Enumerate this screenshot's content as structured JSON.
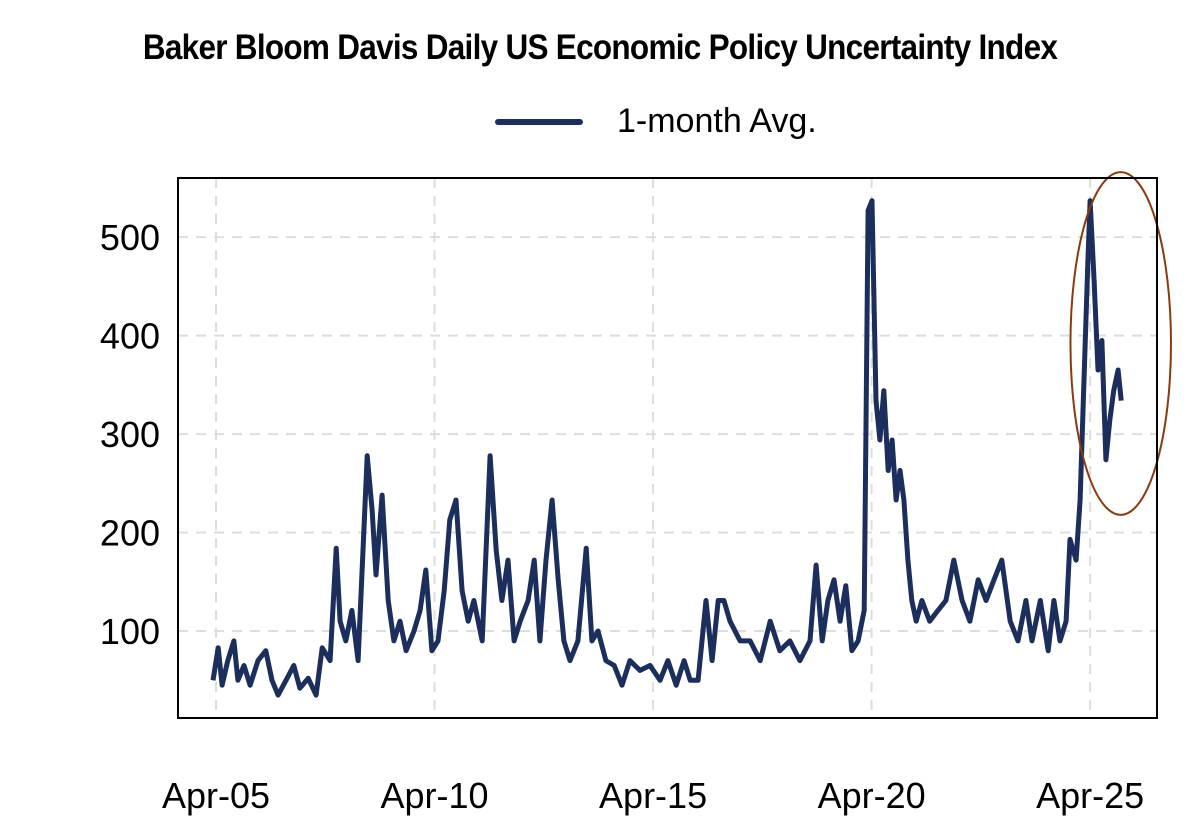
{
  "chart_data": {
    "type": "line",
    "title": "Baker Bloom Davis Daily US Economic Policy Uncertainty Index",
    "xlabel": "",
    "ylabel": "",
    "xlim": [
      2004.38,
      2026.78
    ],
    "ylim": [
      11.7,
      560
    ],
    "grid": true,
    "legend": {
      "placement": "top-center",
      "entries": [
        "1-month Avg."
      ]
    },
    "colors": {
      "line": "#1b2e5c",
      "annotation": "#8b3a0f",
      "grid": "#dddddd"
    },
    "x_ticks": [
      {
        "value": 2005.25,
        "label": "Apr-05"
      },
      {
        "value": 2010.25,
        "label": "Apr-10"
      },
      {
        "value": 2015.25,
        "label": "Apr-15"
      },
      {
        "value": 2020.25,
        "label": "Apr-20"
      },
      {
        "value": 2025.25,
        "label": "Apr-25"
      }
    ],
    "y_ticks": [
      {
        "value": 100,
        "label": "100"
      },
      {
        "value": 200,
        "label": "200"
      },
      {
        "value": 300,
        "label": "300"
      },
      {
        "value": 400,
        "label": "400"
      },
      {
        "value": 500,
        "label": "500"
      }
    ],
    "annotation": {
      "type": "ellipse",
      "x_range": [
        2024.8,
        2027.1
      ],
      "y_range": [
        218,
        566
      ],
      "note": "recent spike highlighted"
    },
    "series": [
      {
        "name": "1-month Avg.",
        "points": [
          [
            2005.18,
            50
          ],
          [
            2005.3,
            83
          ],
          [
            2005.39,
            45
          ],
          [
            2005.52,
            70
          ],
          [
            2005.66,
            90
          ],
          [
            2005.75,
            50
          ],
          [
            2005.89,
            65
          ],
          [
            2006.03,
            45
          ],
          [
            2006.21,
            70
          ],
          [
            2006.39,
            80
          ],
          [
            2006.53,
            50
          ],
          [
            2006.67,
            35
          ],
          [
            2006.85,
            50
          ],
          [
            2007.03,
            65
          ],
          [
            2007.17,
            42
          ],
          [
            2007.36,
            52
          ],
          [
            2007.54,
            35
          ],
          [
            2007.68,
            83
          ],
          [
            2007.86,
            70
          ],
          [
            2008.0,
            184
          ],
          [
            2008.09,
            110
          ],
          [
            2008.22,
            90
          ],
          [
            2008.36,
            121
          ],
          [
            2008.5,
            70
          ],
          [
            2008.71,
            278
          ],
          [
            2008.82,
            223
          ],
          [
            2008.91,
            157
          ],
          [
            2009.05,
            238
          ],
          [
            2009.19,
            131
          ],
          [
            2009.32,
            90
          ],
          [
            2009.46,
            110
          ],
          [
            2009.6,
            80
          ],
          [
            2009.78,
            100
          ],
          [
            2009.92,
            121
          ],
          [
            2010.05,
            162
          ],
          [
            2010.19,
            80
          ],
          [
            2010.33,
            90
          ],
          [
            2010.47,
            141
          ],
          [
            2010.6,
            213
          ],
          [
            2010.74,
            233
          ],
          [
            2010.88,
            141
          ],
          [
            2011.02,
            110
          ],
          [
            2011.15,
            131
          ],
          [
            2011.34,
            90
          ],
          [
            2011.52,
            278
          ],
          [
            2011.66,
            182
          ],
          [
            2011.79,
            131
          ],
          [
            2011.93,
            172
          ],
          [
            2012.07,
            90
          ],
          [
            2012.21,
            110
          ],
          [
            2012.39,
            131
          ],
          [
            2012.53,
            172
          ],
          [
            2012.66,
            90
          ],
          [
            2012.8,
            172
          ],
          [
            2012.94,
            233
          ],
          [
            2013.08,
            152
          ],
          [
            2013.21,
            90
          ],
          [
            2013.35,
            70
          ],
          [
            2013.53,
            90
          ],
          [
            2013.72,
            184
          ],
          [
            2013.85,
            90
          ],
          [
            2013.99,
            100
          ],
          [
            2014.17,
            70
          ],
          [
            2014.36,
            65
          ],
          [
            2014.54,
            45
          ],
          [
            2014.72,
            70
          ],
          [
            2014.95,
            60
          ],
          [
            2015.18,
            65
          ],
          [
            2015.41,
            50
          ],
          [
            2015.59,
            70
          ],
          [
            2015.78,
            45
          ],
          [
            2015.96,
            70
          ],
          [
            2016.1,
            50
          ],
          [
            2016.28,
            50
          ],
          [
            2016.46,
            131
          ],
          [
            2016.6,
            70
          ],
          [
            2016.74,
            131
          ],
          [
            2016.87,
            131
          ],
          [
            2017.01,
            110
          ],
          [
            2017.24,
            90
          ],
          [
            2017.47,
            90
          ],
          [
            2017.7,
            70
          ],
          [
            2017.93,
            110
          ],
          [
            2018.15,
            80
          ],
          [
            2018.38,
            90
          ],
          [
            2018.61,
            70
          ],
          [
            2018.84,
            90
          ],
          [
            2018.98,
            167
          ],
          [
            2019.12,
            90
          ],
          [
            2019.25,
            131
          ],
          [
            2019.39,
            152
          ],
          [
            2019.53,
            110
          ],
          [
            2019.66,
            146
          ],
          [
            2019.8,
            80
          ],
          [
            2019.94,
            90
          ],
          [
            2020.08,
            121
          ],
          [
            2020.17,
            527
          ],
          [
            2020.26,
            537
          ],
          [
            2020.35,
            334
          ],
          [
            2020.44,
            294
          ],
          [
            2020.53,
            344
          ],
          [
            2020.63,
            263
          ],
          [
            2020.72,
            294
          ],
          [
            2020.81,
            233
          ],
          [
            2020.9,
            263
          ],
          [
            2020.99,
            233
          ],
          [
            2021.08,
            172
          ],
          [
            2021.17,
            131
          ],
          [
            2021.27,
            110
          ],
          [
            2021.4,
            131
          ],
          [
            2021.58,
            110
          ],
          [
            2021.77,
            121
          ],
          [
            2021.95,
            131
          ],
          [
            2022.13,
            172
          ],
          [
            2022.32,
            131
          ],
          [
            2022.5,
            110
          ],
          [
            2022.69,
            152
          ],
          [
            2022.87,
            131
          ],
          [
            2023.05,
            152
          ],
          [
            2023.23,
            172
          ],
          [
            2023.42,
            110
          ],
          [
            2023.6,
            90
          ],
          [
            2023.78,
            131
          ],
          [
            2023.92,
            90
          ],
          [
            2024.11,
            131
          ],
          [
            2024.29,
            80
          ],
          [
            2024.42,
            131
          ],
          [
            2024.56,
            90
          ],
          [
            2024.7,
            110
          ],
          [
            2024.79,
            193
          ],
          [
            2024.93,
            172
          ],
          [
            2025.02,
            233
          ],
          [
            2025.11,
            355
          ],
          [
            2025.2,
            476
          ],
          [
            2025.25,
            537
          ],
          [
            2025.34,
            456
          ],
          [
            2025.43,
            365
          ],
          [
            2025.52,
            395
          ],
          [
            2025.61,
            274
          ],
          [
            2025.7,
            314
          ],
          [
            2025.79,
            344
          ],
          [
            2025.89,
            365
          ],
          [
            2025.96,
            334
          ]
        ]
      }
    ]
  }
}
